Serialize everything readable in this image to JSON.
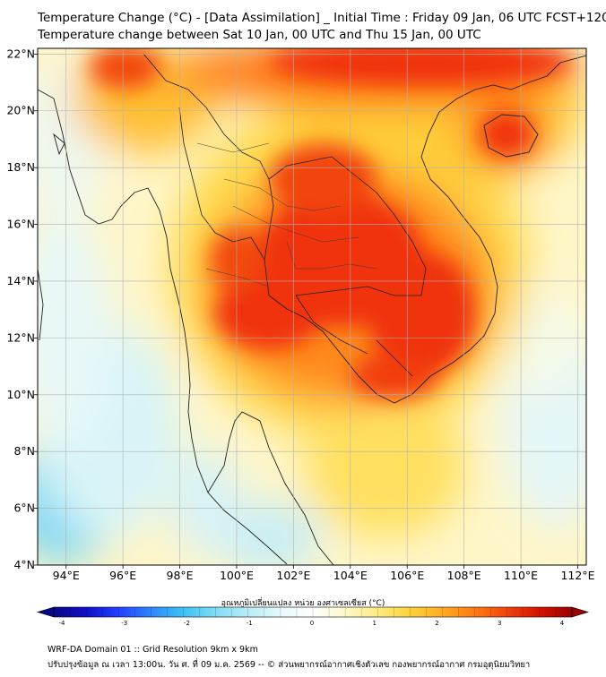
{
  "title": {
    "line1": "Temperature Change (°C) - [Data Assimilation] _ Initial Time : Friday 09 Jan, 06 UTC FCST+120",
    "line2": "Temperature change between Sat 10 Jan, 00 UTC and Thu 15 Jan, 00 UTC"
  },
  "map": {
    "lon_range": [
      93,
      112.3
    ],
    "lat_range": [
      4,
      22.2
    ],
    "lon_ticks": [
      94,
      96,
      98,
      100,
      102,
      104,
      106,
      108,
      110,
      112
    ],
    "lon_labels": [
      "94°E",
      "96°E",
      "98°E",
      "100°E",
      "102°E",
      "104°E",
      "106°E",
      "108°E",
      "110°E",
      "112°E"
    ],
    "lat_ticks": [
      4,
      6,
      8,
      10,
      12,
      14,
      16,
      18,
      20,
      22
    ],
    "lat_labels": [
      "4°N",
      "6°N",
      "8°N",
      "10°N",
      "12°N",
      "14°N",
      "16°N",
      "18°N",
      "20°N",
      "22°N"
    ],
    "warm_centers": [
      {
        "lon": 101.5,
        "lat": 12.7,
        "change": 3.2
      },
      {
        "lon": 103.8,
        "lat": 14.5,
        "change": 3.3
      },
      {
        "lon": 105.5,
        "lat": 12.3,
        "change": 3.2
      },
      {
        "lon": 103.0,
        "lat": 17.5,
        "change": 3.0
      },
      {
        "lon": 109.4,
        "lat": 19.3,
        "change": 3.5
      },
      {
        "lon": 106.0,
        "lat": 21.8,
        "change": 3.4
      },
      {
        "lon": 99.0,
        "lat": 21.5,
        "change": 3.0
      }
    ],
    "cool_centers": [
      {
        "lon": 93.6,
        "lat": 5.0,
        "change": -0.9
      },
      {
        "lon": 111.5,
        "lat": 8.5,
        "change": -0.6
      },
      {
        "lon": 98.7,
        "lat": 7.6,
        "change": -0.5
      }
    ]
  },
  "colorbar": {
    "title": "อุณหภูมิเปลี่ยนแปลง หน่วย องศาเซลเซียส (°C)",
    "min": -4,
    "max": 4,
    "ticks": [
      "-4",
      "-3",
      "-2",
      "-1",
      "0",
      "1",
      "2",
      "3",
      "4"
    ],
    "colors": [
      "#08088a",
      "#1010c8",
      "#2040ff",
      "#2f86ff",
      "#3cc2f5",
      "#7fdcf5",
      "#b8ecf8",
      "#e6f8fb",
      "#ffffff",
      "#fff8c8",
      "#ffec80",
      "#ffd23a",
      "#ffab20",
      "#ff7a14",
      "#f2440a",
      "#d41200",
      "#9a0000"
    ]
  },
  "footer": {
    "line1": "WRF-DA Domain 01 :: Grid Resolution 9km x 9km",
    "line2": "ปรับปรุงข้อมูล ณ เวลา 13:00น. วัน ศ. ที่ 09 ม.ค. 2569 -- © ส่วนพยากรณ์อากาศเชิงตัวเลข กองพยากรณ์อากาศ กรมอุตุนิยมวิทยา"
  }
}
